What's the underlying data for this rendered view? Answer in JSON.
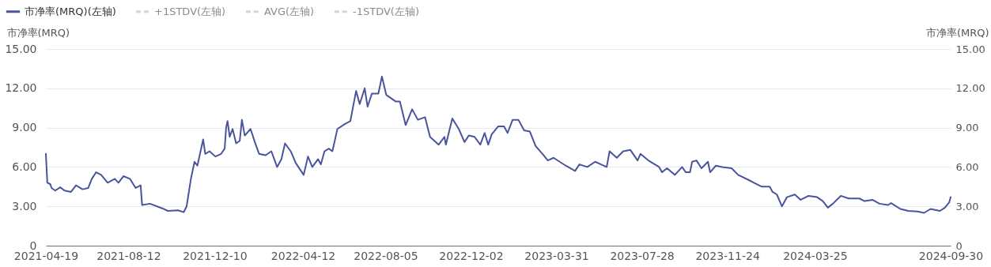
{
  "chart_data": {
    "type": "line",
    "ylabel": "市净率(MRQ)",
    "y2label": "市净率(MRQ)",
    "ylim": [
      0,
      15
    ],
    "yticks": [
      0,
      {
        "value": 3,
        "label": "3.00"
      },
      {
        "value": 6,
        "label": "6.00"
      },
      {
        "value": 9,
        "label": "9.00"
      },
      {
        "value": 12,
        "label": "12.00"
      },
      {
        "value": 15,
        "label": "15.00"
      }
    ],
    "y2lim": [
      0,
      15
    ],
    "y2ticks": [
      0,
      {
        "value": 3,
        "label": "3.00"
      },
      {
        "value": 6,
        "label": "6.00"
      },
      {
        "value": 9,
        "label": "9.00"
      },
      {
        "value": 12,
        "label": "12.00"
      },
      {
        "value": 15,
        "label": "15.00"
      }
    ],
    "xlim": [
      "2021-04-19",
      "2024-09-30"
    ],
    "xticks": [
      "2021-04-19",
      "2021-08-12",
      "2021-12-10",
      "2022-04-12",
      "2022-08-05",
      "2022-12-02",
      "2023-03-31",
      "2023-07-28",
      "2023-11-24",
      "2024-03-25",
      "2024-09-30"
    ],
    "grid": "y",
    "legend": "top left",
    "marker": "none",
    "series": [
      {
        "name": "市净率(MRQ)(左轴)",
        "color": "#4a549c",
        "line_style": "solid",
        "x": [
          "2021-04-19",
          "2021-04-21",
          "2021-04-25",
          "2021-04-27",
          "2021-05-02",
          "2021-05-09",
          "2021-05-15",
          "2021-05-24",
          "2021-05-31",
          "2021-06-09",
          "2021-06-17",
          "2021-06-22",
          "2021-06-28",
          "2021-07-05",
          "2021-07-14",
          "2021-07-24",
          "2021-07-29",
          "2021-08-05",
          "2021-08-14",
          "2021-08-22",
          "2021-08-29",
          "2021-08-31",
          "2021-09-11",
          "2021-09-28",
          "2021-10-06",
          "2021-10-20",
          "2021-10-28",
          "2021-11-01",
          "2021-11-07",
          "2021-11-12",
          "2021-11-16",
          "2021-11-24",
          "2021-11-27",
          "2021-12-03",
          "2021-12-11",
          "2021-12-19",
          "2021-12-24",
          "2021-12-26",
          "2021-12-28",
          "2021-12-31",
          "2022-01-04",
          "2022-01-09",
          "2022-01-14",
          "2022-01-17",
          "2022-01-21",
          "2022-01-29",
          "2022-02-04",
          "2022-02-10",
          "2022-02-19",
          "2022-02-27",
          "2022-03-07",
          "2022-03-13",
          "2022-03-18",
          "2022-03-26",
          "2022-04-02",
          "2022-04-13",
          "2022-04-19",
          "2022-04-25",
          "2022-05-03",
          "2022-05-07",
          "2022-05-12",
          "2022-05-18",
          "2022-05-23",
          "2022-05-30",
          "2022-06-10",
          "2022-06-17",
          "2022-06-25",
          "2022-06-30",
          "2022-07-07",
          "2022-07-11",
          "2022-07-17",
          "2022-07-26",
          "2022-07-31",
          "2022-08-06",
          "2022-08-19",
          "2022-08-25",
          "2022-09-02",
          "2022-09-11",
          "2022-09-19",
          "2022-09-29",
          "2022-10-06",
          "2022-10-18",
          "2022-10-26",
          "2022-10-28",
          "2022-11-06",
          "2022-11-15",
          "2022-11-23",
          "2022-11-29",
          "2022-12-07",
          "2022-12-15",
          "2022-12-21",
          "2022-12-26",
          "2022-12-31",
          "2023-01-09",
          "2023-01-17",
          "2023-01-22",
          "2023-01-29",
          "2023-02-06",
          "2023-02-14",
          "2023-02-22",
          "2023-03-02",
          "2023-03-13",
          "2023-03-19",
          "2023-03-27",
          "2023-04-13",
          "2023-04-26",
          "2023-05-02",
          "2023-05-13",
          "2023-05-24",
          "2023-06-09",
          "2023-06-13",
          "2023-06-23",
          "2023-07-02",
          "2023-07-12",
          "2023-07-22",
          "2023-07-26",
          "2023-08-06",
          "2023-08-21",
          "2023-08-25",
          "2023-09-01",
          "2023-09-12",
          "2023-09-22",
          "2023-09-27",
          "2023-10-03",
          "2023-10-06",
          "2023-10-12",
          "2023-10-19",
          "2023-10-28",
          "2023-10-31",
          "2023-11-08",
          "2023-11-17",
          "2023-11-30",
          "2023-12-09",
          "2023-12-24",
          "2023-12-31",
          "2024-01-11",
          "2024-01-22",
          "2024-01-26",
          "2024-02-01",
          "2024-02-08",
          "2024-02-15",
          "2024-02-26",
          "2024-03-05",
          "2024-03-16",
          "2024-03-28",
          "2024-04-05",
          "2024-04-12",
          "2024-04-19",
          "2024-04-30",
          "2024-05-11",
          "2024-05-26",
          "2024-06-02",
          "2024-06-13",
          "2024-06-23",
          "2024-07-05",
          "2024-07-09",
          "2024-07-22",
          "2024-08-02",
          "2024-08-15",
          "2024-08-24",
          "2024-09-02",
          "2024-09-15",
          "2024-09-22",
          "2024-09-28",
          "2024-09-30"
        ],
        "values": [
          7.0,
          4.8,
          4.7,
          4.4,
          4.2,
          4.45,
          4.2,
          4.1,
          4.6,
          4.3,
          4.4,
          5.1,
          5.6,
          5.4,
          4.8,
          5.1,
          4.8,
          5.3,
          5.1,
          4.4,
          4.6,
          3.1,
          3.2,
          2.85,
          2.65,
          2.7,
          2.55,
          3.0,
          5.1,
          6.4,
          6.1,
          8.1,
          7.0,
          7.2,
          6.8,
          7.0,
          7.4,
          9.0,
          9.5,
          8.3,
          8.9,
          7.8,
          8.0,
          9.6,
          8.4,
          8.9,
          7.9,
          7.0,
          6.9,
          7.2,
          6.0,
          6.6,
          7.8,
          7.2,
          6.3,
          5.4,
          6.8,
          6.0,
          6.6,
          6.2,
          7.2,
          7.4,
          7.2,
          8.9,
          9.3,
          9.5,
          11.8,
          10.8,
          12.0,
          10.6,
          11.6,
          11.6,
          12.9,
          11.5,
          11.0,
          11.0,
          9.2,
          10.4,
          9.6,
          9.8,
          8.3,
          7.7,
          8.3,
          7.7,
          9.7,
          8.9,
          7.9,
          8.4,
          8.3,
          7.7,
          8.6,
          7.7,
          8.5,
          9.1,
          9.1,
          8.6,
          9.6,
          9.6,
          8.8,
          8.7,
          7.6,
          6.9,
          6.5,
          6.7,
          6.1,
          5.7,
          6.2,
          6.0,
          6.4,
          6.0,
          7.2,
          6.7,
          7.2,
          7.3,
          6.5,
          7.0,
          6.5,
          6.0,
          5.6,
          5.9,
          5.4,
          6.0,
          5.6,
          5.6,
          6.4,
          6.5,
          5.9,
          6.4,
          5.6,
          6.1,
          6.0,
          5.9,
          5.4,
          5.0,
          4.8,
          4.5,
          4.5,
          4.1,
          3.9,
          3.0,
          3.7,
          3.9,
          3.5,
          3.8,
          3.7,
          3.4,
          2.9,
          3.2,
          3.8,
          3.6,
          3.6,
          3.4,
          3.5,
          3.2,
          3.1,
          3.25,
          2.8,
          2.65,
          2.6,
          2.5,
          2.8,
          2.65,
          2.9,
          3.3,
          3.7
        ]
      },
      {
        "name": "+1STDV(左轴)",
        "color": "#d4d4d4",
        "line_style": "dashed"
      },
      {
        "name": "AVG(左轴)",
        "color": "#d4d4d4",
        "line_style": "dashed"
      },
      {
        "name": "-1STDV(左轴)",
        "color": "#d4d4d4",
        "line_style": "dashed"
      }
    ]
  }
}
